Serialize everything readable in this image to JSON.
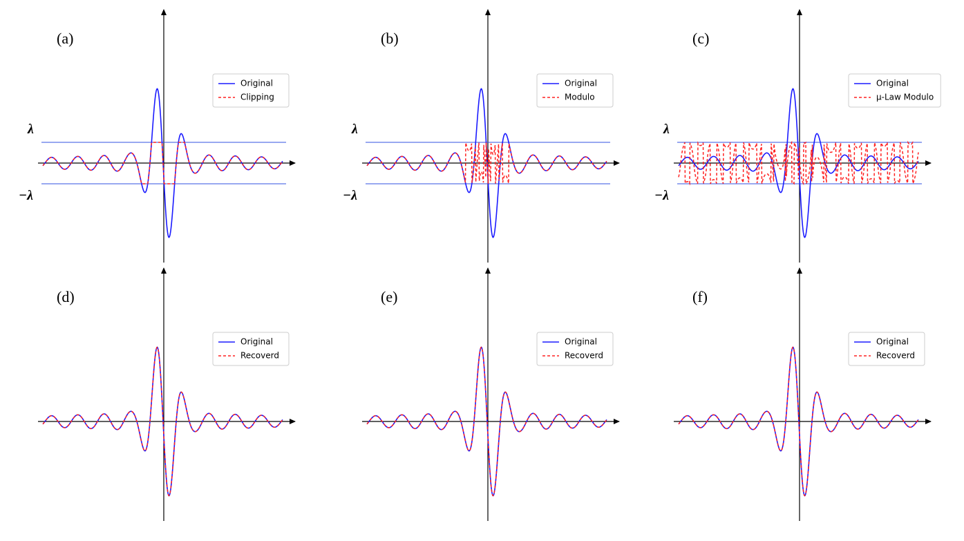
{
  "panels": [
    {
      "label": "(a)",
      "legend": [
        "Original",
        "Clipping"
      ],
      "lambda": "λ",
      "neg_lambda": "−λ"
    },
    {
      "label": "(b)",
      "legend": [
        "Original",
        "Modulo"
      ],
      "lambda": "λ",
      "neg_lambda": "−λ"
    },
    {
      "label": "(c)",
      "legend": [
        "Original",
        "μ-Law Modulo"
      ],
      "lambda": "λ",
      "neg_lambda": "−λ"
    },
    {
      "label": "(d)",
      "legend": [
        "Original",
        "Recoverd"
      ]
    },
    {
      "label": "(e)",
      "legend": [
        "Original",
        "Recoverd"
      ]
    },
    {
      "label": "(f)",
      "legend": [
        "Original",
        "Recoverd"
      ]
    }
  ]
}
